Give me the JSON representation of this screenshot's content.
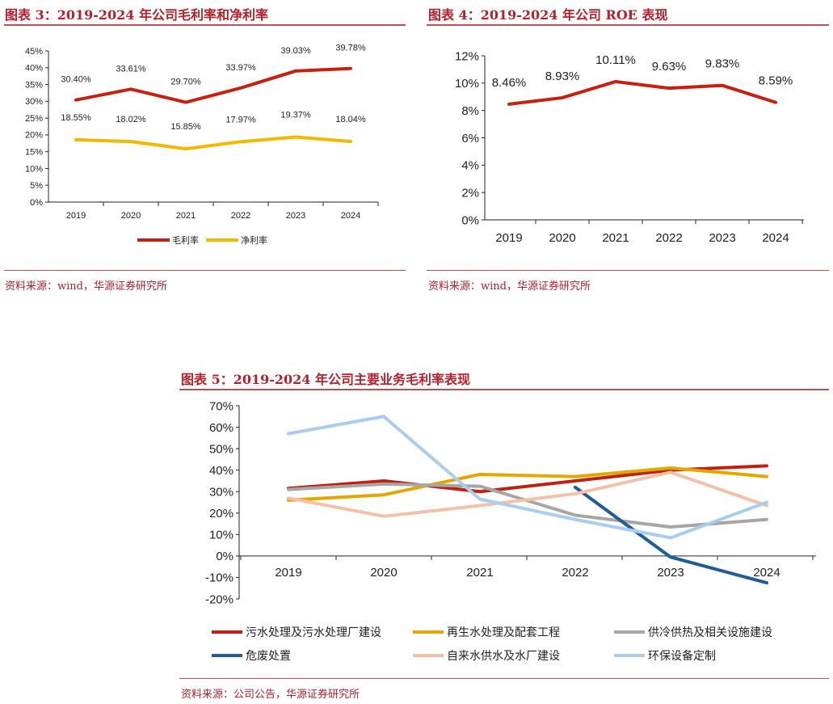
{
  "figures": [
    {
      "title": "图表 3：2019-2024 年公司毛利率和净利率",
      "source": "资料来源：wind，华源证券研究所"
    },
    {
      "title": "图表 4：2019-2024 年公司 ROE 表现",
      "source": "资料来源：wind，华源证券研究所"
    },
    {
      "title": "图表 5：2019-2024 年公司主要业务毛利率表现",
      "source": "资料来源：公司公告，华源证券研究所"
    }
  ],
  "chart_data": [
    {
      "type": "line",
      "categories": [
        "2019",
        "2020",
        "2021",
        "2022",
        "2023",
        "2024"
      ],
      "ylim": [
        0,
        45
      ],
      "yticks": [
        0,
        5,
        10,
        15,
        20,
        25,
        30,
        35,
        40,
        45
      ],
      "yunit": "%",
      "legend": "bottom",
      "grid": false,
      "series": [
        {
          "name": "毛利率",
          "color": "#c8200e",
          "values": [
            30.4,
            33.61,
            29.7,
            33.97,
            39.03,
            39.78
          ],
          "labels": [
            "30.40%",
            "33.61%",
            "29.70%",
            "33.97%",
            "39.03%",
            "39.78%"
          ]
        },
        {
          "name": "净利率",
          "color": "#f5b800",
          "values": [
            18.55,
            18.02,
            15.85,
            17.97,
            19.37,
            18.04
          ],
          "labels": [
            "18.55%",
            "18.02%",
            "15.85%",
            "17.97%",
            "19.37%",
            "18.04%"
          ]
        }
      ]
    },
    {
      "type": "line",
      "categories": [
        "2019",
        "2020",
        "2021",
        "2022",
        "2023",
        "2024"
      ],
      "ylim": [
        0,
        12
      ],
      "yticks": [
        0,
        2,
        4,
        6,
        8,
        10,
        12
      ],
      "yunit": "%",
      "grid": false,
      "series": [
        {
          "color": "#c8200e",
          "values": [
            8.46,
            8.93,
            10.11,
            9.63,
            9.83,
            8.59
          ],
          "labels": [
            "8.46%",
            "8.93%",
            "10.11%",
            "9.63%",
            "9.83%",
            "8.59%"
          ]
        }
      ]
    },
    {
      "type": "line",
      "categories": [
        "2019",
        "2020",
        "2021",
        "2022",
        "2023",
        "2024"
      ],
      "ylim": [
        -20,
        70
      ],
      "yticks": [
        -20,
        -10,
        0,
        10,
        20,
        30,
        40,
        50,
        60,
        70
      ],
      "yunit": "%",
      "legend": "bottom",
      "grid": false,
      "series": [
        {
          "name": "污水处理及污水处理厂建设",
          "color": "#c0200e",
          "values": [
            31.5,
            35,
            30,
            35,
            40,
            42
          ]
        },
        {
          "name": "再生水处理及配套工程",
          "color": "#e3a800",
          "values": [
            26,
            28.5,
            38,
            37,
            41,
            37
          ]
        },
        {
          "name": "供冷供热及相关设施建设",
          "color": "#a6a6a6",
          "values": [
            31,
            33.5,
            32.5,
            19,
            13.5,
            17
          ]
        },
        {
          "name": "危废处置",
          "color": "#1f5c99",
          "values": [
            null,
            null,
            null,
            32,
            -0.5,
            -12.5
          ]
        },
        {
          "name": "自来水供水及水厂建设",
          "color": "#f4c0a8",
          "values": [
            27,
            18.5,
            23.5,
            29,
            39,
            23.5
          ]
        },
        {
          "name": "环保设备定制",
          "color": "#a8cdee",
          "values": [
            57,
            65,
            26.5,
            17,
            8.5,
            25
          ]
        }
      ]
    }
  ]
}
